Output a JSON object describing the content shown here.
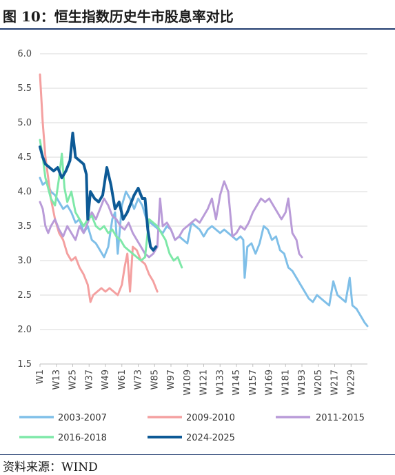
{
  "title": "图 10：恒生指数历史牛市股息率对比",
  "source": "资料来源：WIND",
  "chart_data": {
    "type": "line",
    "title": "图 10：恒生指数历史牛市股息率对比",
    "xlabel": "",
    "ylabel": "",
    "ylim": [
      1.5,
      6.0
    ],
    "yticks": [
      "1.5",
      "2.0",
      "2.5",
      "3.0",
      "3.5",
      "4.0",
      "4.5",
      "5.0",
      "5.5",
      "6.0"
    ],
    "xlim": [
      1,
      241
    ],
    "xticks": [
      "W1",
      "W13",
      "W25",
      "W37",
      "W49",
      "W61",
      "W73",
      "W85",
      "W97",
      "W109",
      "W121",
      "W133",
      "W145",
      "W157",
      "W169",
      "W181",
      "W193",
      "W205",
      "W217",
      "W229"
    ],
    "grid": "horizontal",
    "legend_position": "bottom",
    "series": [
      {
        "name": "2003-2007",
        "color": "#7fbfe8",
        "points": [
          [
            1,
            4.2
          ],
          [
            3,
            4.1
          ],
          [
            6,
            4.15
          ],
          [
            9,
            4.0
          ],
          [
            12,
            3.95
          ],
          [
            15,
            3.85
          ],
          [
            18,
            3.75
          ],
          [
            21,
            3.8
          ],
          [
            24,
            3.7
          ],
          [
            27,
            3.55
          ],
          [
            30,
            3.6
          ],
          [
            33,
            3.4
          ],
          [
            36,
            3.5
          ],
          [
            39,
            3.3
          ],
          [
            42,
            3.25
          ],
          [
            45,
            3.15
          ],
          [
            48,
            3.05
          ],
          [
            51,
            3.2
          ],
          [
            54,
            3.6
          ],
          [
            56,
            3.7
          ],
          [
            58,
            3.1
          ],
          [
            61,
            3.8
          ],
          [
            64,
            4.0
          ],
          [
            67,
            3.9
          ],
          [
            70,
            3.75
          ],
          [
            73,
            3.9
          ],
          [
            76,
            3.8
          ],
          [
            79,
            3.6
          ],
          [
            82,
            3.55
          ],
          [
            85,
            3.5
          ],
          [
            88,
            3.45
          ],
          [
            91,
            3.4
          ],
          [
            94,
            3.5
          ],
          [
            97,
            3.45
          ],
          [
            100,
            3.3
          ],
          [
            103,
            3.35
          ],
          [
            106,
            3.3
          ],
          [
            109,
            3.25
          ],
          [
            112,
            3.55
          ],
          [
            115,
            3.5
          ],
          [
            118,
            3.45
          ],
          [
            121,
            3.35
          ],
          [
            124,
            3.45
          ],
          [
            127,
            3.5
          ],
          [
            130,
            3.45
          ],
          [
            133,
            3.4
          ],
          [
            136,
            3.45
          ],
          [
            139,
            3.4
          ],
          [
            142,
            3.35
          ],
          [
            145,
            3.3
          ],
          [
            148,
            3.35
          ],
          [
            150,
            3.3
          ],
          [
            151,
            2.75
          ],
          [
            153,
            3.2
          ],
          [
            156,
            3.25
          ],
          [
            159,
            3.1
          ],
          [
            162,
            3.25
          ],
          [
            165,
            3.5
          ],
          [
            168,
            3.45
          ],
          [
            171,
            3.3
          ],
          [
            174,
            3.35
          ],
          [
            177,
            3.15
          ],
          [
            180,
            3.1
          ],
          [
            183,
            2.9
          ],
          [
            186,
            2.85
          ],
          [
            189,
            2.75
          ],
          [
            192,
            2.65
          ],
          [
            195,
            2.55
          ],
          [
            198,
            2.45
          ],
          [
            201,
            2.4
          ],
          [
            204,
            2.5
          ],
          [
            207,
            2.45
          ],
          [
            210,
            2.4
          ],
          [
            213,
            2.35
          ],
          [
            216,
            2.7
          ],
          [
            219,
            2.5
          ],
          [
            222,
            2.45
          ],
          [
            225,
            2.4
          ],
          [
            228,
            2.75
          ],
          [
            230,
            2.35
          ],
          [
            233,
            2.3
          ],
          [
            236,
            2.2
          ],
          [
            239,
            2.1
          ],
          [
            241,
            2.05
          ]
        ]
      },
      {
        "name": "2009-2010",
        "color": "#f4a0a0",
        "points": [
          [
            1,
            5.7
          ],
          [
            3,
            5.0
          ],
          [
            5,
            4.5
          ],
          [
            7,
            4.2
          ],
          [
            9,
            3.9
          ],
          [
            12,
            3.6
          ],
          [
            15,
            3.4
          ],
          [
            18,
            3.3
          ],
          [
            21,
            3.1
          ],
          [
            24,
            3.0
          ],
          [
            27,
            3.05
          ],
          [
            30,
            2.9
          ],
          [
            33,
            2.8
          ],
          [
            36,
            2.65
          ],
          [
            38,
            2.4
          ],
          [
            40,
            2.5
          ],
          [
            43,
            2.55
          ],
          [
            46,
            2.6
          ],
          [
            49,
            2.55
          ],
          [
            52,
            2.6
          ],
          [
            55,
            2.55
          ],
          [
            58,
            2.5
          ],
          [
            61,
            2.65
          ],
          [
            63,
            2.9
          ],
          [
            65,
            3.1
          ],
          [
            67,
            2.55
          ],
          [
            69,
            3.2
          ],
          [
            72,
            3.15
          ],
          [
            75,
            3.0
          ],
          [
            78,
            2.95
          ],
          [
            81,
            2.8
          ],
          [
            84,
            2.7
          ],
          [
            87,
            2.55
          ]
        ]
      },
      {
        "name": "2011-2015",
        "color": "#b99bd8",
        "points": [
          [
            1,
            3.85
          ],
          [
            3,
            3.75
          ],
          [
            5,
            3.5
          ],
          [
            7,
            3.4
          ],
          [
            9,
            3.5
          ],
          [
            12,
            3.6
          ],
          [
            15,
            3.45
          ],
          [
            18,
            3.35
          ],
          [
            21,
            3.5
          ],
          [
            24,
            3.4
          ],
          [
            27,
            3.3
          ],
          [
            30,
            3.5
          ],
          [
            33,
            3.4
          ],
          [
            36,
            3.55
          ],
          [
            39,
            3.7
          ],
          [
            42,
            3.6
          ],
          [
            45,
            3.75
          ],
          [
            48,
            3.9
          ],
          [
            51,
            3.8
          ],
          [
            54,
            3.65
          ],
          [
            57,
            3.6
          ],
          [
            60,
            3.5
          ],
          [
            63,
            3.45
          ],
          [
            66,
            3.55
          ],
          [
            69,
            3.4
          ],
          [
            72,
            3.3
          ],
          [
            75,
            3.2
          ],
          [
            78,
            3.1
          ],
          [
            81,
            3.05
          ],
          [
            84,
            3.1
          ],
          [
            87,
            3.2
          ],
          [
            89,
            3.9
          ],
          [
            91,
            3.5
          ],
          [
            94,
            3.55
          ],
          [
            97,
            3.45
          ],
          [
            100,
            3.3
          ],
          [
            103,
            3.35
          ],
          [
            106,
            3.45
          ],
          [
            109,
            3.5
          ],
          [
            112,
            3.55
          ],
          [
            115,
            3.6
          ],
          [
            118,
            3.55
          ],
          [
            121,
            3.65
          ],
          [
            124,
            3.75
          ],
          [
            127,
            3.9
          ],
          [
            130,
            3.6
          ],
          [
            133,
            3.95
          ],
          [
            136,
            4.15
          ],
          [
            139,
            4.0
          ],
          [
            142,
            3.35
          ],
          [
            145,
            3.4
          ],
          [
            148,
            3.5
          ],
          [
            151,
            3.45
          ],
          [
            154,
            3.55
          ],
          [
            157,
            3.7
          ],
          [
            160,
            3.8
          ],
          [
            163,
            3.9
          ],
          [
            166,
            3.85
          ],
          [
            169,
            3.9
          ],
          [
            172,
            3.8
          ],
          [
            175,
            3.7
          ],
          [
            178,
            3.6
          ],
          [
            181,
            3.7
          ],
          [
            183,
            3.9
          ],
          [
            186,
            3.4
          ],
          [
            189,
            3.3
          ],
          [
            191,
            3.1
          ],
          [
            193,
            3.05
          ]
        ]
      },
      {
        "name": "2016-2018",
        "color": "#7ee8a8",
        "points": [
          [
            1,
            4.75
          ],
          [
            3,
            4.5
          ],
          [
            5,
            4.2
          ],
          [
            7,
            4.05
          ],
          [
            9,
            3.9
          ],
          [
            12,
            3.8
          ],
          [
            15,
            4.2
          ],
          [
            17,
            4.55
          ],
          [
            19,
            4.05
          ],
          [
            21,
            3.85
          ],
          [
            24,
            4.0
          ],
          [
            27,
            3.7
          ],
          [
            30,
            3.6
          ],
          [
            33,
            3.5
          ],
          [
            36,
            3.6
          ],
          [
            39,
            3.65
          ],
          [
            42,
            3.5
          ],
          [
            45,
            3.45
          ],
          [
            48,
            3.5
          ],
          [
            51,
            3.4
          ],
          [
            54,
            3.45
          ],
          [
            57,
            3.35
          ],
          [
            60,
            3.3
          ],
          [
            63,
            3.2
          ],
          [
            66,
            3.15
          ],
          [
            69,
            3.1
          ],
          [
            72,
            3.05
          ],
          [
            75,
            3.0
          ],
          [
            78,
            3.05
          ],
          [
            81,
            3.6
          ],
          [
            84,
            3.55
          ],
          [
            87,
            3.5
          ],
          [
            90,
            3.4
          ],
          [
            93,
            3.3
          ],
          [
            96,
            3.1
          ],
          [
            99,
            3.0
          ],
          [
            102,
            3.05
          ],
          [
            105,
            2.9
          ]
        ]
      },
      {
        "name": "2024-2025",
        "color": "#0d5a96",
        "points": [
          [
            1,
            4.65
          ],
          [
            3,
            4.5
          ],
          [
            5,
            4.4
          ],
          [
            8,
            4.35
          ],
          [
            11,
            4.3
          ],
          [
            14,
            4.35
          ],
          [
            17,
            4.2
          ],
          [
            20,
            4.3
          ],
          [
            23,
            4.45
          ],
          [
            25,
            4.85
          ],
          [
            27,
            4.5
          ],
          [
            30,
            4.45
          ],
          [
            33,
            4.4
          ],
          [
            35,
            4.25
          ],
          [
            36,
            3.6
          ],
          [
            38,
            4.0
          ],
          [
            41,
            3.9
          ],
          [
            44,
            3.85
          ],
          [
            47,
            3.95
          ],
          [
            50,
            4.35
          ],
          [
            53,
            4.1
          ],
          [
            56,
            3.75
          ],
          [
            59,
            3.85
          ],
          [
            62,
            3.6
          ],
          [
            65,
            3.7
          ],
          [
            67,
            3.8
          ],
          [
            70,
            3.95
          ],
          [
            73,
            4.05
          ],
          [
            76,
            3.9
          ],
          [
            78,
            3.9
          ],
          [
            80,
            3.45
          ],
          [
            82,
            3.2
          ],
          [
            84,
            3.15
          ],
          [
            86,
            3.2
          ]
        ]
      }
    ]
  }
}
